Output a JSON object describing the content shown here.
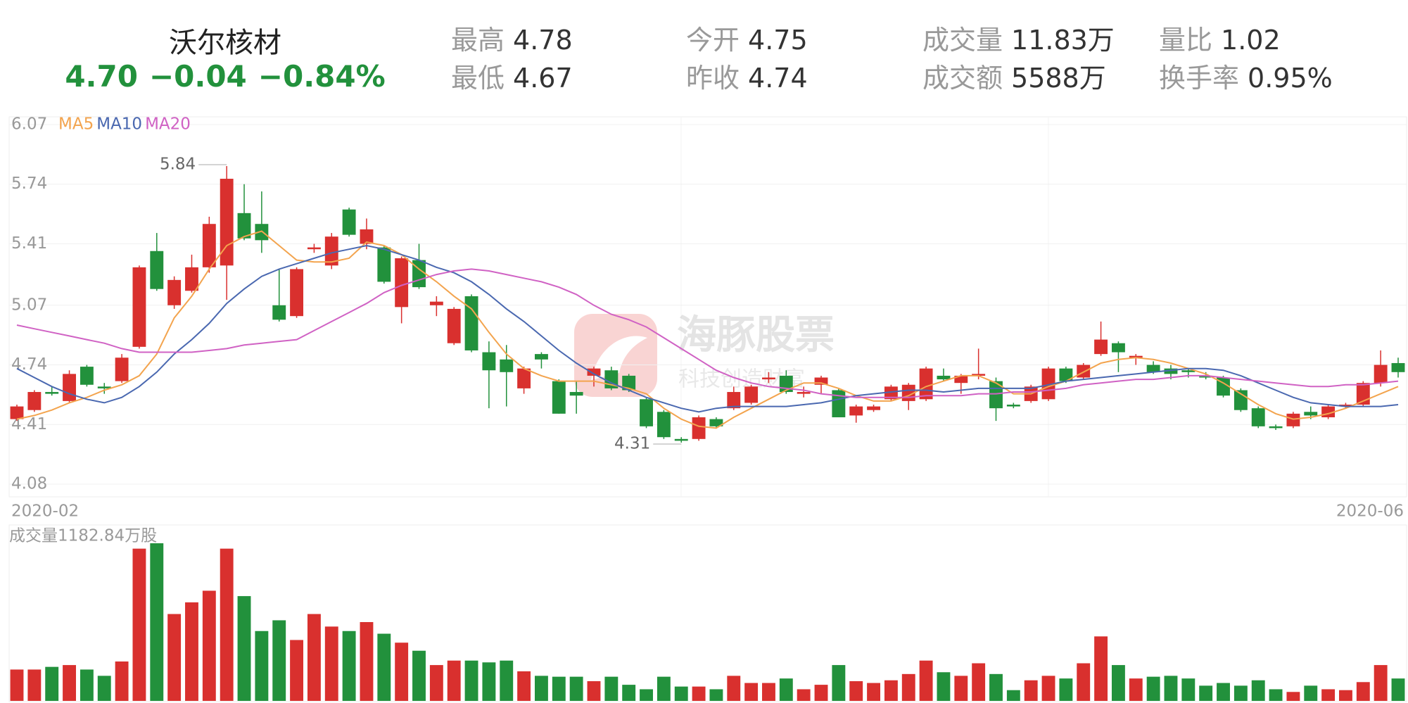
{
  "header": {
    "name": "沃尔核材",
    "price": "4.70",
    "change": "−0.04",
    "change_pct": "−0.84%",
    "stats": [
      {
        "label": "最高",
        "value": "4.78"
      },
      {
        "label": "最低",
        "value": "4.67"
      },
      {
        "label": "今开",
        "value": "4.75"
      },
      {
        "label": "昨收",
        "value": "4.74"
      },
      {
        "label": "成交量",
        "value": "11.83万"
      },
      {
        "label": "成交额",
        "value": "5588万"
      },
      {
        "label": "量比",
        "value": "1.02"
      },
      {
        "label": "换手率",
        "value": "0.95%"
      }
    ]
  },
  "watermark": {
    "title": "海豚股票",
    "subtitle": "科技创造财富"
  },
  "chart_data": [
    {
      "type": "candlestick",
      "up_color": "#d9302e",
      "down_color": "#22913c",
      "ylim": [
        4.08,
        6.07
      ],
      "yticks": [
        6.07,
        5.74,
        5.41,
        5.07,
        4.74,
        4.41,
        4.08
      ],
      "grid": true,
      "xlabels": [
        "2020-02",
        "2020-06"
      ],
      "max_label": 5.84,
      "min_label": 4.31,
      "open": [
        4.44,
        4.49,
        4.59,
        4.54,
        4.73,
        4.62,
        4.65,
        4.84,
        5.37,
        5.07,
        5.15,
        5.28,
        5.29,
        5.58,
        5.52,
        5.07,
        5.01,
        5.38,
        5.29,
        5.6,
        5.41,
        5.39,
        5.06,
        5.32,
        5.07,
        4.86,
        5.12,
        4.81,
        4.77,
        4.61,
        4.8,
        4.65,
        4.59,
        4.68,
        4.71,
        4.68,
        4.55,
        4.48,
        4.33,
        4.33,
        4.44,
        4.5,
        4.53,
        4.66,
        4.68,
        4.58,
        4.63,
        4.6,
        4.46,
        4.49,
        4.55,
        4.54,
        4.55,
        4.68,
        4.64,
        4.68,
        4.65,
        4.52,
        4.54,
        4.55,
        4.72,
        4.67,
        4.8,
        4.86,
        4.78,
        4.74,
        4.72,
        4.71,
        4.68,
        4.67,
        4.6,
        4.5,
        4.4,
        4.4,
        4.48,
        4.45,
        4.51,
        4.52,
        4.64,
        4.75
      ],
      "high": [
        4.52,
        4.6,
        4.62,
        4.71,
        4.74,
        4.64,
        4.8,
        5.29,
        5.47,
        5.23,
        5.35,
        5.56,
        5.84,
        5.74,
        5.7,
        5.27,
        5.28,
        5.41,
        5.47,
        5.61,
        5.55,
        5.4,
        5.34,
        5.41,
        5.12,
        5.06,
        5.13,
        4.87,
        4.85,
        4.73,
        4.81,
        4.66,
        4.65,
        4.73,
        4.73,
        4.69,
        4.56,
        4.49,
        4.34,
        4.46,
        4.45,
        4.62,
        4.63,
        4.7,
        4.71,
        4.62,
        4.68,
        4.61,
        4.52,
        4.52,
        4.63,
        4.64,
        4.73,
        4.72,
        4.69,
        4.83,
        4.67,
        4.53,
        4.63,
        4.73,
        4.73,
        4.75,
        4.98,
        4.87,
        4.8,
        4.76,
        4.74,
        4.72,
        4.7,
        4.68,
        4.61,
        4.51,
        4.41,
        4.48,
        4.51,
        4.52,
        4.53,
        4.65,
        4.82,
        4.78
      ],
      "low": [
        4.43,
        4.48,
        4.57,
        4.53,
        4.62,
        4.58,
        4.64,
        4.83,
        5.15,
        5.05,
        5.14,
        5.25,
        5.1,
        5.43,
        5.36,
        4.98,
        5.0,
        5.36,
        5.27,
        5.45,
        5.38,
        5.19,
        4.97,
        5.16,
        5.01,
        4.85,
        4.81,
        4.5,
        4.51,
        4.58,
        4.72,
        4.47,
        4.47,
        4.62,
        4.6,
        4.59,
        4.39,
        4.33,
        4.31,
        4.32,
        4.39,
        4.49,
        4.52,
        4.64,
        4.58,
        4.56,
        4.58,
        4.45,
        4.42,
        4.48,
        4.54,
        4.49,
        4.54,
        4.65,
        4.58,
        4.66,
        4.43,
        4.5,
        4.53,
        4.54,
        4.64,
        4.66,
        4.79,
        4.7,
        4.74,
        4.69,
        4.66,
        4.67,
        4.66,
        4.56,
        4.48,
        4.39,
        4.38,
        4.39,
        4.44,
        4.44,
        4.5,
        4.51,
        4.62,
        4.67
      ],
      "close": [
        4.51,
        4.59,
        4.58,
        4.69,
        4.63,
        4.61,
        4.78,
        5.28,
        5.16,
        5.21,
        5.28,
        5.52,
        5.77,
        5.44,
        5.43,
        4.99,
        5.27,
        5.39,
        5.45,
        5.46,
        5.49,
        5.2,
        5.33,
        5.17,
        5.09,
        5.05,
        4.82,
        4.71,
        4.7,
        4.72,
        4.77,
        4.47,
        4.57,
        4.72,
        4.61,
        4.6,
        4.4,
        4.34,
        4.32,
        4.45,
        4.4,
        4.59,
        4.62,
        4.67,
        4.59,
        4.59,
        4.67,
        4.45,
        4.51,
        4.51,
        4.62,
        4.63,
        4.72,
        4.66,
        4.68,
        4.69,
        4.5,
        4.51,
        4.62,
        4.72,
        4.65,
        4.74,
        4.88,
        4.81,
        4.79,
        4.7,
        4.69,
        4.7,
        4.67,
        4.57,
        4.49,
        4.4,
        4.39,
        4.47,
        4.46,
        4.51,
        4.52,
        4.64,
        4.74,
        4.7
      ],
      "series": [
        {
          "name": "MA5",
          "color": "#f3a44e",
          "values": [
            4.44,
            4.46,
            4.49,
            4.53,
            4.56,
            4.6,
            4.63,
            4.68,
            4.8,
            5.0,
            5.12,
            5.27,
            5.4,
            5.45,
            5.48,
            5.4,
            5.32,
            5.31,
            5.31,
            5.33,
            5.42,
            5.4,
            5.35,
            5.27,
            5.2,
            5.12,
            5.05,
            4.92,
            4.8,
            4.72,
            4.68,
            4.65,
            4.65,
            4.65,
            4.63,
            4.61,
            4.58,
            4.5,
            4.44,
            4.4,
            4.39,
            4.45,
            4.5,
            4.55,
            4.6,
            4.64,
            4.64,
            4.61,
            4.57,
            4.54,
            4.54,
            4.57,
            4.62,
            4.65,
            4.68,
            4.68,
            4.64,
            4.58,
            4.58,
            4.62,
            4.65,
            4.7,
            4.75,
            4.77,
            4.78,
            4.77,
            4.75,
            4.72,
            4.69,
            4.64,
            4.58,
            4.52,
            4.47,
            4.44,
            4.45,
            4.47,
            4.5,
            4.54,
            4.58,
            4.62
          ]
        },
        {
          "name": "MA10",
          "color": "#4a68b0",
          "values": [
            4.72,
            4.67,
            4.62,
            4.58,
            4.55,
            4.53,
            4.56,
            4.62,
            4.7,
            4.8,
            4.88,
            4.97,
            5.08,
            5.16,
            5.23,
            5.27,
            5.3,
            5.33,
            5.36,
            5.38,
            5.4,
            5.38,
            5.35,
            5.32,
            5.28,
            5.25,
            5.2,
            5.13,
            5.05,
            4.98,
            4.9,
            4.82,
            4.75,
            4.69,
            4.64,
            4.6,
            4.56,
            4.53,
            4.5,
            4.48,
            4.5,
            4.51,
            4.51,
            4.51,
            4.51,
            4.52,
            4.53,
            4.55,
            4.57,
            4.58,
            4.59,
            4.6,
            4.6,
            4.59,
            4.6,
            4.61,
            4.61,
            4.61,
            4.61,
            4.63,
            4.65,
            4.66,
            4.67,
            4.68,
            4.69,
            4.7,
            4.71,
            4.72,
            4.72,
            4.71,
            4.68,
            4.64,
            4.6,
            4.56,
            4.53,
            4.52,
            4.51,
            4.51,
            4.51,
            4.52
          ]
        },
        {
          "name": "MA20",
          "color": "#d062c4",
          "values": [
            4.96,
            4.94,
            4.92,
            4.9,
            4.88,
            4.86,
            4.83,
            4.81,
            4.81,
            4.81,
            4.81,
            4.82,
            4.83,
            4.85,
            4.86,
            4.87,
            4.88,
            4.93,
            4.98,
            5.03,
            5.08,
            5.14,
            5.18,
            5.21,
            5.24,
            5.26,
            5.27,
            5.26,
            5.24,
            5.22,
            5.2,
            5.17,
            5.13,
            5.07,
            5.02,
            4.99,
            4.95,
            4.89,
            4.83,
            4.77,
            4.71,
            4.67,
            4.64,
            4.62,
            4.61,
            4.6,
            4.58,
            4.57,
            4.56,
            4.56,
            4.56,
            4.56,
            4.57,
            4.57,
            4.57,
            4.58,
            4.58,
            4.59,
            4.59,
            4.6,
            4.61,
            4.63,
            4.64,
            4.65,
            4.66,
            4.66,
            4.67,
            4.68,
            4.68,
            4.67,
            4.66,
            4.65,
            4.64,
            4.63,
            4.62,
            4.62,
            4.63,
            4.63,
            4.64,
            4.65
          ]
        }
      ]
    },
    {
      "type": "bar",
      "title": "成交量1182.84万股",
      "values": [
        1656,
        1656,
        1797,
        1892,
        1656,
        1324,
        2081,
        8041,
        8325,
        4588,
        5203,
        5818,
        8041,
        5534,
        3689,
        4257,
        3216,
        4588,
        3926,
        3689,
        4162,
        3548,
        3075,
        2649,
        1892,
        2129,
        2129,
        2034,
        2129,
        1561,
        1324,
        1277,
        1277,
        1041,
        1277,
        851,
        615,
        1277,
        757,
        757,
        615,
        1324,
        946,
        946,
        1183,
        615,
        851,
        1892,
        1041,
        946,
        1088,
        1419,
        2129,
        1514,
        1324,
        1987,
        1419,
        568,
        1088,
        1324,
        1183,
        1987,
        3406,
        1892,
        1183,
        1277,
        1324,
        1183,
        804,
        946,
        804,
        1088,
        615,
        473,
        804,
        615,
        568,
        993,
        1892,
        1182.84
      ]
    }
  ]
}
